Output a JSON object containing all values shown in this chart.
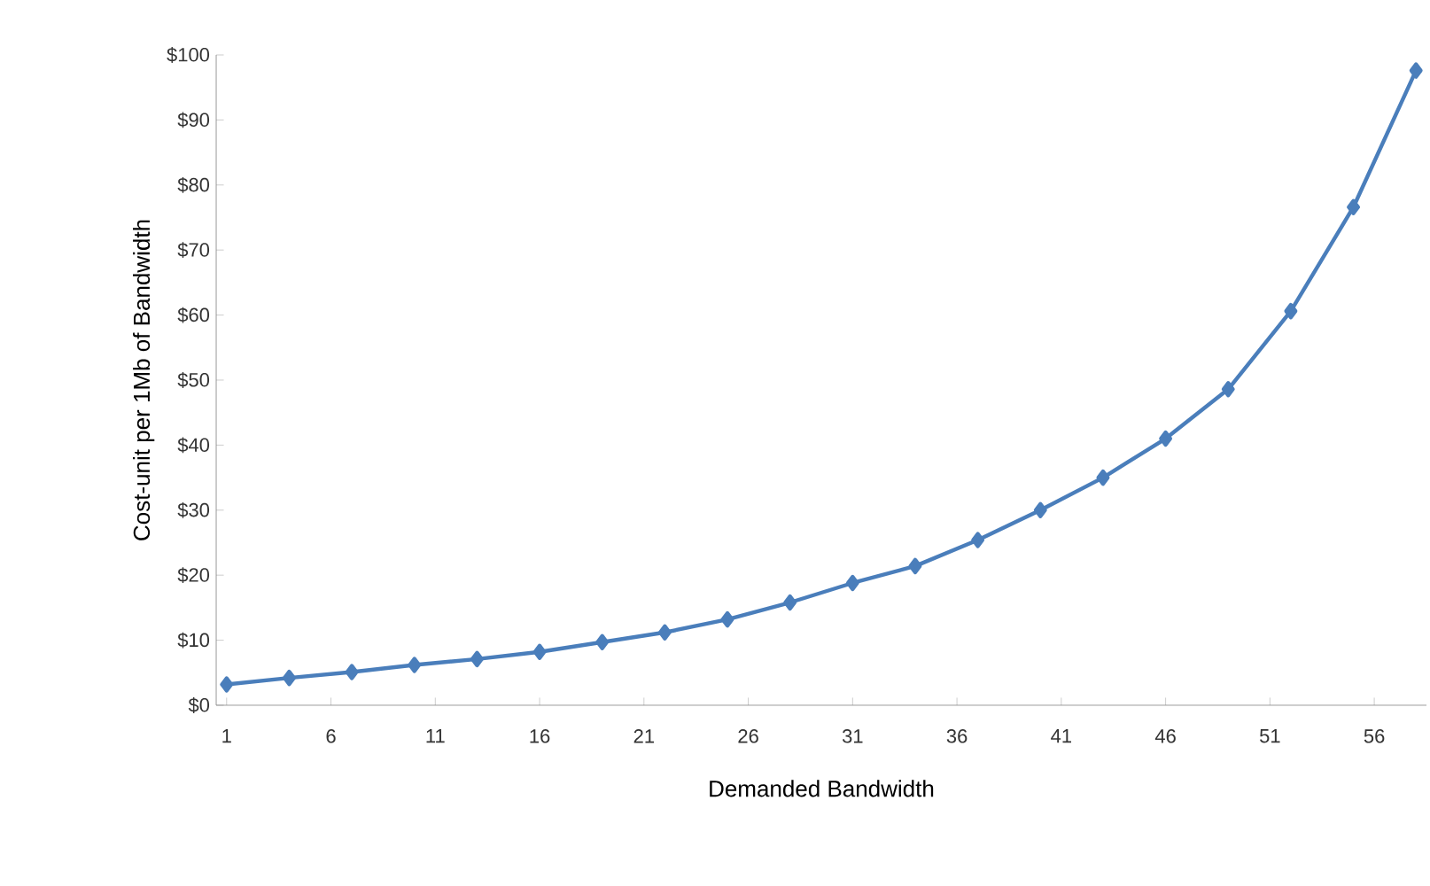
{
  "chart_data": {
    "type": "line",
    "xlabel": "Demanded Bandwidth",
    "ylabel": "Cost-unit per 1Mb of Bandwidth",
    "x": [
      1,
      4,
      7,
      10,
      13,
      16,
      19,
      22,
      25,
      28,
      31,
      34,
      37,
      40,
      43,
      46,
      49,
      52,
      55,
      58
    ],
    "series": [
      {
        "color": "#4a7ebb",
        "values": [
          3.2,
          4.2,
          5.1,
          6.2,
          7.1,
          8.2,
          9.7,
          11.2,
          13.2,
          15.8,
          18.8,
          21.4,
          25.4,
          30,
          35,
          41,
          48.6,
          60.6,
          76.6,
          97.6
        ]
      }
    ],
    "xlim": [
      0.5,
      58.5
    ],
    "xticks": [
      1,
      6,
      11,
      16,
      21,
      26,
      31,
      36,
      41,
      46,
      51,
      56
    ],
    "ylim": [
      0,
      100
    ],
    "yticks": [
      {
        "value": 0,
        "label": "$0"
      },
      {
        "value": 10,
        "label": "$10"
      },
      {
        "value": 20,
        "label": "$20"
      },
      {
        "value": 30,
        "label": "$30"
      },
      {
        "value": 40,
        "label": "$40"
      },
      {
        "value": 50,
        "label": "$50"
      },
      {
        "value": 60,
        "label": "$60"
      },
      {
        "value": 70,
        "label": "$70"
      },
      {
        "value": 80,
        "label": "$80"
      },
      {
        "value": 90,
        "label": "$90"
      },
      {
        "value": 100,
        "label": "$100"
      }
    ],
    "grid": false,
    "marker": "diamond",
    "line_style": "solid"
  }
}
